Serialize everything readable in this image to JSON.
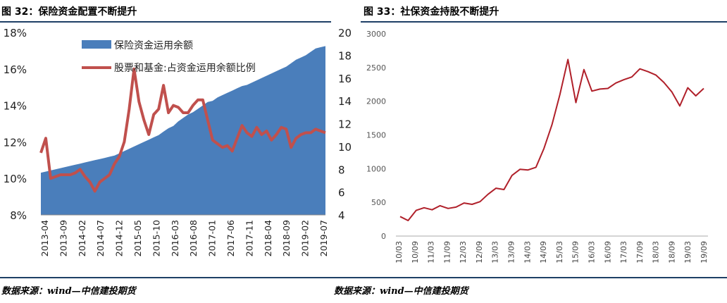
{
  "charts": {
    "left": {
      "title": "图 32：保险资金配置不断提升",
      "source": "数据来源：wind—中信建投期货"
    },
    "right": {
      "title": "图 33：社保资金持股不断提升",
      "source": "数据来源：wind—中信建投期货"
    }
  },
  "colors": {
    "area_blue": "#4a7ebb",
    "ratio_red": "#c0504d",
    "line_red": "#b0202a",
    "rule": "#1e3f66"
  },
  "chart_data": [
    {
      "type": "area",
      "title": "",
      "legend": "top-left",
      "x_tick_labels": [
        "2013-04",
        "2013-09",
        "2014-02",
        "2014-07",
        "2014-12",
        "2015-05",
        "2015-10",
        "2016-03",
        "2016-08",
        "2017-01",
        "2017-06",
        "2017-11",
        "2018-04",
        "2018-09",
        "2019-02",
        "2019-07"
      ],
      "left_axis": {
        "ticks": [
          "8%",
          "10%",
          "12%",
          "14%",
          "16%",
          "18%"
        ],
        "range": [
          8,
          18
        ]
      },
      "right_axis": {
        "ticks": [
          "4",
          "6",
          "8",
          "10",
          "12",
          "14",
          "16",
          "18",
          "20"
        ],
        "range": [
          4,
          20
        ]
      },
      "series": [
        {
          "name": "保险资金运用余额",
          "axis": "right",
          "kind": "area",
          "values": [
            7.7,
            7.8,
            7.9,
            8.0,
            8.1,
            8.2,
            8.3,
            8.4,
            8.5,
            8.6,
            8.7,
            8.8,
            8.9,
            9.0,
            9.1,
            9.2,
            9.4,
            9.6,
            9.8,
            10.0,
            10.2,
            10.4,
            10.6,
            10.8,
            11.0,
            11.3,
            11.6,
            11.8,
            12.2,
            12.5,
            12.8,
            13.0,
            13.3,
            13.6,
            13.9,
            14.0,
            14.3,
            14.5,
            14.7,
            14.9,
            15.1,
            15.3,
            15.4,
            15.6,
            15.8,
            16.0,
            16.2,
            16.4,
            16.6,
            16.8,
            17.0,
            17.3,
            17.6,
            17.8,
            18.0,
            18.3,
            18.6,
            18.7,
            18.8
          ]
        },
        {
          "name": "股票和基金:占资金运用余额比例",
          "axis": "left",
          "kind": "line",
          "values": [
            11.4,
            12.2,
            10.0,
            10.1,
            10.2,
            10.2,
            10.2,
            10.3,
            10.5,
            10.1,
            9.8,
            9.3,
            9.8,
            10.0,
            10.2,
            10.8,
            11.2,
            12.0,
            13.8,
            16.0,
            14.2,
            13.2,
            12.4,
            13.5,
            13.8,
            15.1,
            13.6,
            14.0,
            13.9,
            13.6,
            13.6,
            14.0,
            14.3,
            14.3,
            13.2,
            12.1,
            11.9,
            11.7,
            11.8,
            11.5,
            12.2,
            12.9,
            12.5,
            12.3,
            12.8,
            12.4,
            12.6,
            12.1,
            12.4,
            12.8,
            12.7,
            11.7,
            12.2,
            12.4,
            12.5,
            12.5,
            12.7,
            12.6,
            12.5
          ]
        }
      ]
    },
    {
      "type": "line",
      "title": "",
      "x_tick_labels": [
        "10/03",
        "10/09",
        "11/03",
        "11/09",
        "12/03",
        "12/09",
        "13/03",
        "13/09",
        "14/03",
        "14/09",
        "15/03",
        "15/09",
        "16/03",
        "16/09",
        "17/03",
        "17/09",
        "18/03",
        "18/09",
        "19/03",
        "19/09"
      ],
      "y_ticks": [
        "0",
        "500",
        "1000",
        "1500",
        "2000",
        "2500",
        "3000"
      ],
      "ylim": [
        0,
        3000
      ],
      "series": [
        {
          "values": [
            290,
            230,
            380,
            420,
            390,
            450,
            410,
            430,
            490,
            470,
            510,
            620,
            710,
            690,
            900,
            990,
            980,
            1020,
            1300,
            1650,
            2100,
            2620,
            1980,
            2470,
            2150,
            2180,
            2190,
            2270,
            2320,
            2360,
            2480,
            2440,
            2390,
            2280,
            2140,
            1930,
            2200,
            2080,
            2190
          ]
        }
      ]
    }
  ]
}
